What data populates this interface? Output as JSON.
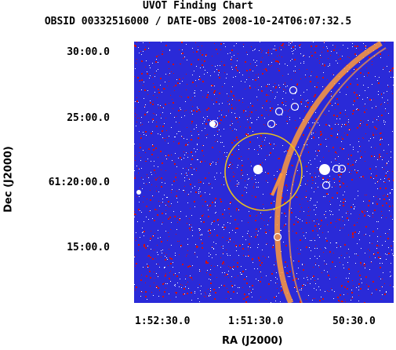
{
  "title": {
    "line1": "UVOT Finding Chart",
    "line2": "OBSID 00332516000 / DATE-OBS 2008-10-24T06:07:32.5"
  },
  "axes": {
    "dec_label": "Dec (J2000)",
    "ra_label": "RA (J2000)",
    "dec_ticks": [
      "30:00.0",
      "25:00.0",
      "61:20:00.0",
      "15:00.0"
    ],
    "ra_ticks": [
      "1:52:30.0",
      "1:51:30.0",
      "50:30.0"
    ]
  },
  "colors": {
    "background_sky": "#2a2ad8",
    "noise_red": "#d01010",
    "noise_white": "#ffffff",
    "arc_orange": "#ff9a3c",
    "target_circle": "#e8c020",
    "source_circle": "#ffffff"
  }
}
